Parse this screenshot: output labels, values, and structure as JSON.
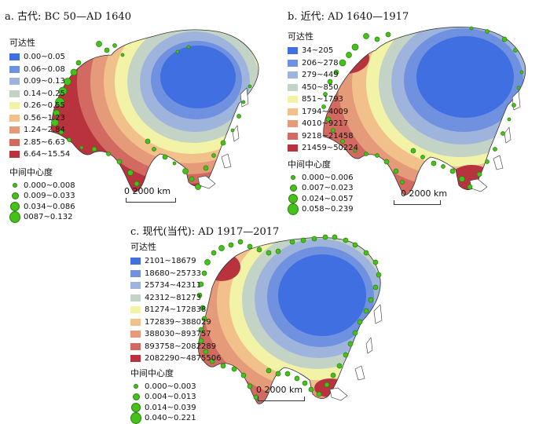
{
  "panels": [
    {
      "title": "a. 古代: BC 50—AD 1640",
      "accessibility_title": "可达性",
      "accessibility_classes": [
        {
          "label": "0.00~0.05",
          "color": "#3f6fe0"
        },
        {
          "label": "0.06~0.08",
          "color": "#6f91e0"
        },
        {
          "label": "0.09~0.13",
          "color": "#9fb4dc"
        },
        {
          "label": "0.14~0.25",
          "color": "#c3d3c6"
        },
        {
          "label": "0.26~0.55",
          "color": "#f3f3a8"
        },
        {
          "label": "0.56~1.23",
          "color": "#f2c08a"
        },
        {
          "label": "1.24~2.84",
          "color": "#e59a7a"
        },
        {
          "label": "2.85~6.63",
          "color": "#d26a62"
        },
        {
          "label": "6.64~15.54",
          "color": "#b8333e"
        }
      ],
      "centrality_title": "中间中心度",
      "centrality_classes": [
        "0.000~0.008",
        "0.009~0.033",
        "0.034~0.086",
        "0087~0.132"
      ],
      "scale_label": "0  2000 km"
    },
    {
      "title": "b. 近代: AD 1640—1917",
      "accessibility_title": "可达性",
      "accessibility_classes": [
        {
          "label": "34~205",
          "color": "#3f6fe0"
        },
        {
          "label": "206~278",
          "color": "#6f91e0"
        },
        {
          "label": "279~449",
          "color": "#9fb4dc"
        },
        {
          "label": "450~850",
          "color": "#c3d3c6"
        },
        {
          "label": "851~1793",
          "color": "#f3f3a8"
        },
        {
          "label": "1794~4009",
          "color": "#f2c08a"
        },
        {
          "label": "4010~9217",
          "color": "#e59a7a"
        },
        {
          "label": "9218~21458",
          "color": "#d26a62"
        },
        {
          "label": "21459~50224",
          "color": "#b8333e"
        }
      ],
      "centrality_title": "中间中心度",
      "centrality_classes": [
        "0.000~0.006",
        "0.007~0.023",
        "0.024~0.057",
        "0.058~0.239"
      ],
      "scale_label": "0  2000 km"
    },
    {
      "title": "c. 现代(当代): AD 1917—2017",
      "accessibility_title": "可达性",
      "accessibility_classes": [
        {
          "label": "2101~18679",
          "color": "#3f6fe0"
        },
        {
          "label": "18680~25733",
          "color": "#6f91e0"
        },
        {
          "label": "25734~42311",
          "color": "#9fb4dc"
        },
        {
          "label": "42312~81273",
          "color": "#c3d3c6"
        },
        {
          "label": "81274~172838",
          "color": "#f3f3a8"
        },
        {
          "label": "172839~388029",
          "color": "#f2c08a"
        },
        {
          "label": "388030~893757",
          "color": "#e59a7a"
        },
        {
          "label": "893758~2082289",
          "color": "#d26a62"
        },
        {
          "label": "2082290~4875506",
          "color": "#b8333e"
        }
      ],
      "centrality_title": "中间中心度",
      "centrality_classes": [
        "0.000~0.003",
        "0.004~0.013",
        "0.014~0.039",
        "0.040~0.221"
      ],
      "scale_label": "0  2000 km"
    }
  ],
  "colors": {
    "node_fill": "#44c21a",
    "node_stroke": "#2b7d0f",
    "coast_line": "#333333"
  }
}
